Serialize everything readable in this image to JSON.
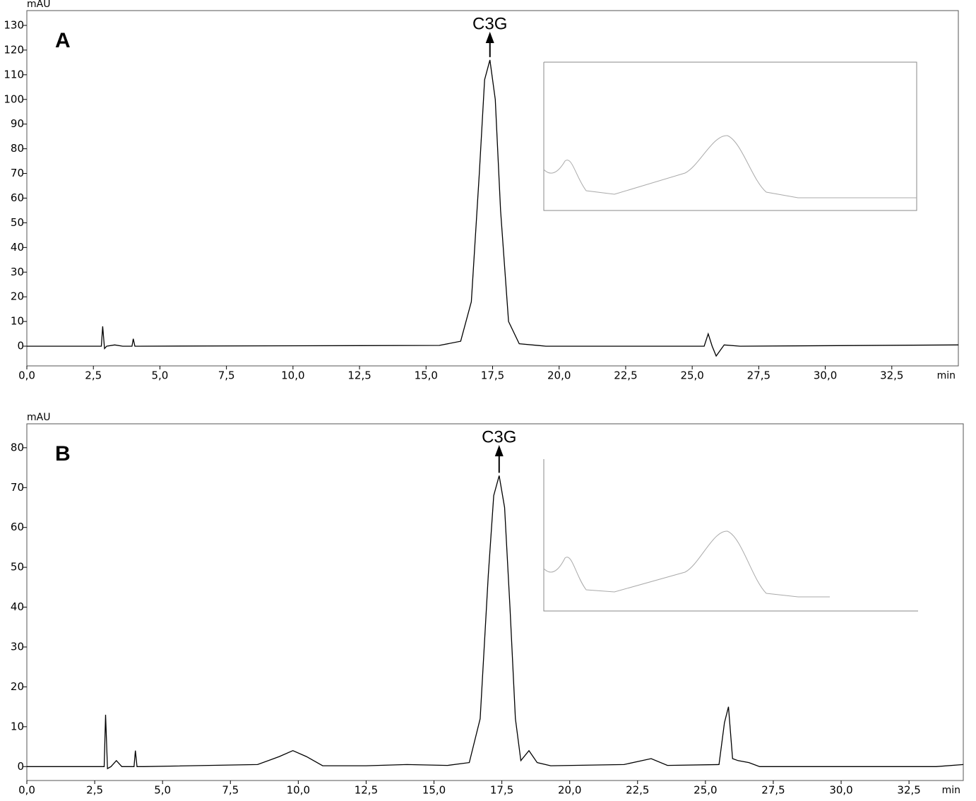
{
  "chart_data": [
    {
      "type": "line",
      "panel_label": "A",
      "annotation": "C3G",
      "ylabel": "mAU",
      "xlabel": "min",
      "color": "#000000",
      "xlim": [
        0,
        35.0
      ],
      "ylim": [
        -8,
        136
      ],
      "yticks": [
        0,
        10,
        20,
        30,
        40,
        50,
        60,
        70,
        80,
        90,
        100,
        110,
        120,
        130
      ],
      "xticks": [
        {
          "value": 0,
          "label": "0,0"
        },
        {
          "value": 2.5,
          "label": "2,5"
        },
        {
          "value": 5,
          "label": "5,0"
        },
        {
          "value": 7.5,
          "label": "7,5"
        },
        {
          "value": 10,
          "label": "10,0"
        },
        {
          "value": 12.5,
          "label": "12,5"
        },
        {
          "value": 15,
          "label": "15,0"
        },
        {
          "value": 17.5,
          "label": "17,5"
        },
        {
          "value": 20,
          "label": "20,0"
        },
        {
          "value": 22.5,
          "label": "22,5"
        },
        {
          "value": 25,
          "label": "25,0"
        },
        {
          "value": 27.5,
          "label": "27,5"
        },
        {
          "value": 30,
          "label": "30,0"
        },
        {
          "value": 32.5,
          "label": "32,5"
        }
      ],
      "x": [
        0,
        2.8,
        2.85,
        2.92,
        3.0,
        3.3,
        3.6,
        3.95,
        4.0,
        4.06,
        4.2,
        15.5,
        16.3,
        16.7,
        17.0,
        17.2,
        17.4,
        17.6,
        17.8,
        18.1,
        18.5,
        19.5,
        25.45,
        25.6,
        25.75,
        25.9,
        26.2,
        26.8,
        35.0
      ],
      "values": [
        0,
        0,
        8,
        -1,
        0,
        0.5,
        0,
        0,
        3,
        0,
        0,
        0.3,
        2,
        18,
        70,
        108,
        116,
        100,
        55,
        10,
        1,
        0,
        0,
        5,
        0,
        -4,
        0.5,
        0,
        0.5
      ]
    },
    {
      "type": "line",
      "panel_label": "B",
      "annotation": "C3G",
      "ylabel": "mAU",
      "xlabel": "min",
      "color": "#000000",
      "xlim": [
        0,
        34.5
      ],
      "ylim": [
        -3.5,
        86
      ],
      "yticks": [
        0,
        10,
        20,
        30,
        40,
        50,
        60,
        70,
        80
      ],
      "xticks": [
        {
          "value": 0,
          "label": "0,0"
        },
        {
          "value": 2.5,
          "label": "2,5"
        },
        {
          "value": 5,
          "label": "5,0"
        },
        {
          "value": 7.5,
          "label": "7,5"
        },
        {
          "value": 10,
          "label": "10,0"
        },
        {
          "value": 12.5,
          "label": "12,5"
        },
        {
          "value": 15,
          "label": "15,0"
        },
        {
          "value": 17.5,
          "label": "17,5"
        },
        {
          "value": 20,
          "label": "20,0"
        },
        {
          "value": 22.5,
          "label": "22,5"
        },
        {
          "value": 25,
          "label": "25,0"
        },
        {
          "value": 27.5,
          "label": "27,5"
        },
        {
          "value": 30,
          "label": "30,0"
        },
        {
          "value": 32.5,
          "label": "32,5"
        }
      ],
      "x": [
        0,
        2.85,
        2.9,
        2.97,
        3.1,
        3.3,
        3.5,
        3.95,
        4.0,
        4.06,
        4.3,
        8.5,
        9.3,
        9.8,
        10.3,
        10.9,
        12.5,
        14.0,
        15.5,
        16.3,
        16.7,
        17.0,
        17.2,
        17.4,
        17.6,
        17.8,
        18.0,
        18.2,
        18.5,
        18.8,
        19.3,
        22.0,
        23.0,
        23.6,
        25.5,
        25.7,
        25.85,
        26.0,
        26.2,
        26.6,
        27.0,
        33.5,
        34.5
      ],
      "values": [
        0,
        0,
        13,
        -0.5,
        0,
        1.5,
        0,
        0,
        4,
        0,
        0,
        0.5,
        2.5,
        4,
        2.5,
        0.2,
        0.2,
        0.5,
        0.3,
        1,
        12,
        48,
        68,
        73,
        65,
        40,
        12,
        1.5,
        4,
        1,
        0.2,
        0.5,
        2,
        0.3,
        0.5,
        11,
        15,
        2,
        1.5,
        1,
        0,
        0,
        0.5
      ]
    }
  ]
}
